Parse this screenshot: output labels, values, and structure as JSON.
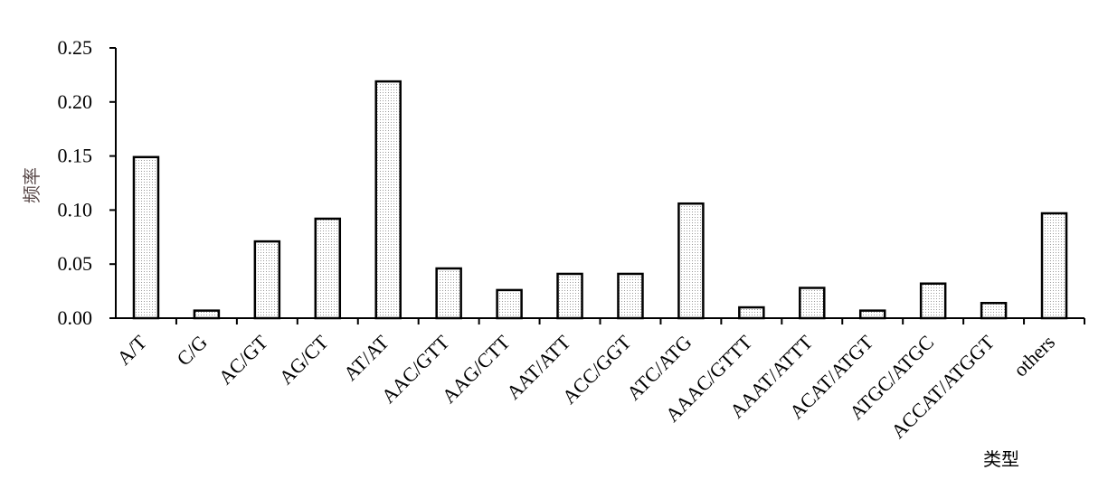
{
  "chart_data": {
    "type": "bar",
    "title": "",
    "xlabel": "类型",
    "ylabel": "频率",
    "ylim": [
      0,
      0.25
    ],
    "yticks": [
      "0.00",
      "0.05",
      "0.10",
      "0.15",
      "0.20",
      "0.25"
    ],
    "categories": [
      "A/T",
      "C/G",
      "AC/GT",
      "AG/CT",
      "AT/AT",
      "AAC/GTT",
      "AAG/CTT",
      "AAT/ATT",
      "ACC/GGT",
      "ATC/ATG",
      "AAAC/GTTT",
      "AAAT/ATTT",
      "ACAT/ATGT",
      "ATGC/ATGC",
      "ACCAT/ATGGT",
      "others"
    ],
    "values": [
      0.149,
      0.007,
      0.071,
      0.092,
      0.219,
      0.046,
      0.026,
      0.041,
      0.041,
      0.106,
      0.01,
      0.028,
      0.007,
      0.032,
      0.014,
      0.097
    ],
    "grid": false,
    "bar_fill": "#f2f2f2",
    "bar_stroke": "#000000"
  }
}
